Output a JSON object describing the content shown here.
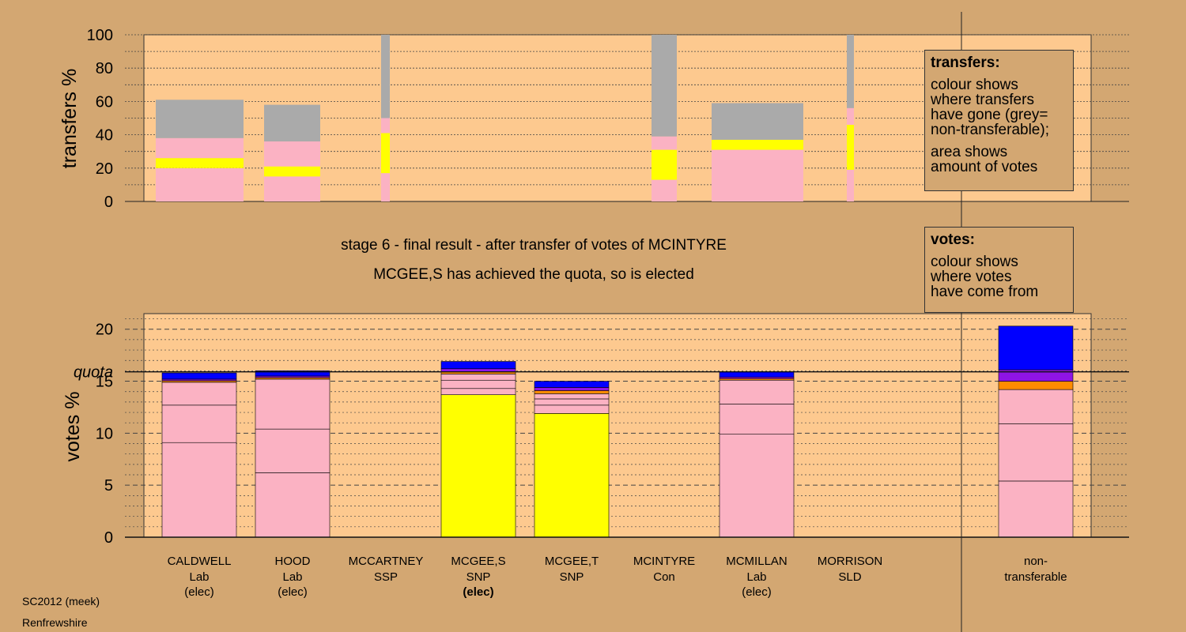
{
  "chart_data": [
    {
      "type": "bar",
      "ylabel": "transfers %",
      "ylim": [
        0,
        100
      ],
      "yticks": [
        "0",
        "20",
        "40",
        "60",
        "80",
        "100"
      ],
      "note": "stacked transfer bars; pink, yellow and grey segments (grey = non-transferable)",
      "bars": [
        {
          "candidate": "CALDWELL",
          "pink": 20,
          "yellow": 6,
          "pink2": 12,
          "grey": 23
        },
        {
          "candidate": "HOOD",
          "pink": 15,
          "yellow": 6,
          "pink2": 15,
          "grey": 22
        },
        {
          "candidate": "MCCARTNEY",
          "pink": 17,
          "yellow": 24,
          "pink2": 9,
          "grey": 50
        },
        {
          "candidate": "MCINTYRE",
          "pink": 13,
          "yellow": 18,
          "pink2": 8,
          "grey": 61
        },
        {
          "candidate": "MCMILLAN",
          "pink": 31,
          "yellow": 6,
          "pink2": 0,
          "grey": 22
        },
        {
          "candidate": "MORRISON",
          "pink": 19,
          "yellow": 27,
          "pink2": 10,
          "grey": 44
        }
      ]
    },
    {
      "type": "bar",
      "ylabel": "votes %",
      "ylim": [
        0,
        21.5
      ],
      "yticks": [
        "0",
        "5",
        "10",
        "15",
        "20"
      ],
      "quota": 15.9,
      "quota_label": "quota",
      "categories": [
        {
          "name": "CALDWELL",
          "party": "Lab",
          "status": "(elec)",
          "status_bold": false
        },
        {
          "name": "HOOD",
          "party": "Lab",
          "status": "(elec)",
          "status_bold": false
        },
        {
          "name": "MCCARTNEY",
          "party": "SSP",
          "status": "",
          "status_bold": false
        },
        {
          "name": "MCGEE,S",
          "party": "SNP",
          "status": "(elec)",
          "status_bold": true
        },
        {
          "name": "MCGEE,T",
          "party": "SNP",
          "status": "",
          "status_bold": false
        },
        {
          "name": "MCINTYRE",
          "party": "Con",
          "status": "",
          "status_bold": false
        },
        {
          "name": "MCMILLAN",
          "party": "Lab",
          "status": "(elec)",
          "status_bold": false
        },
        {
          "name": "MORRISON",
          "party": "SLD",
          "status": "",
          "status_bold": false
        }
      ],
      "bars": [
        [
          {
            "v": 9.1,
            "c": "pink"
          },
          {
            "v": 3.6,
            "c": "pink"
          },
          {
            "v": 2.2,
            "c": "pink"
          },
          {
            "v": 0.15,
            "c": "orange"
          },
          {
            "v": 0.15,
            "c": "purple"
          },
          {
            "v": 0.6,
            "c": "blue"
          }
        ],
        [
          {
            "v": 6.2,
            "c": "pink"
          },
          {
            "v": 4.2,
            "c": "pink"
          },
          {
            "v": 4.8,
            "c": "pink"
          },
          {
            "v": 0.15,
            "c": "orange"
          },
          {
            "v": 0.15,
            "c": "purple"
          },
          {
            "v": 0.5,
            "c": "blue"
          }
        ],
        [],
        [
          {
            "v": 13.7,
            "c": "yellow"
          },
          {
            "v": 0.6,
            "c": "pink"
          },
          {
            "v": 0.8,
            "c": "pink"
          },
          {
            "v": 0.6,
            "c": "pink"
          },
          {
            "v": 0.2,
            "c": "orange"
          },
          {
            "v": 0.3,
            "c": "purple"
          },
          {
            "v": 0.7,
            "c": "blue"
          }
        ],
        [
          {
            "v": 11.9,
            "c": "yellow"
          },
          {
            "v": 0.8,
            "c": "pink"
          },
          {
            "v": 0.6,
            "c": "pink"
          },
          {
            "v": 0.5,
            "c": "pink"
          },
          {
            "v": 0.3,
            "c": "orange"
          },
          {
            "v": 0.3,
            "c": "purple"
          },
          {
            "v": 0.6,
            "c": "blue"
          }
        ],
        [],
        [
          {
            "v": 9.9,
            "c": "pink"
          },
          {
            "v": 2.9,
            "c": "pink"
          },
          {
            "v": 2.3,
            "c": "pink"
          },
          {
            "v": 0.15,
            "c": "orange"
          },
          {
            "v": 0.15,
            "c": "purple"
          },
          {
            "v": 0.5,
            "c": "blue"
          }
        ],
        []
      ],
      "nontransferable": {
        "label_line1": "non-",
        "label_line2": "transferable",
        "segments": [
          {
            "v": 5.4,
            "c": "pink"
          },
          {
            "v": 5.5,
            "c": "pink"
          },
          {
            "v": 3.3,
            "c": "pink"
          },
          {
            "v": 0.8,
            "c": "orange"
          },
          {
            "v": 1.1,
            "c": "purple"
          },
          {
            "v": 4.2,
            "c": "blue"
          }
        ]
      }
    }
  ],
  "colors": {
    "plot_bg": "#fdc98f",
    "page_bg": "#d3a772",
    "pink": "#fbb2c3",
    "yellow": "#ffff00",
    "grey": "#aaaaaa",
    "blue": "#0000ff",
    "purple": "#8f14e6",
    "orange": "#ff8c00"
  },
  "legend_transfers": {
    "title": "transfers:",
    "line1": "colour shows",
    "line2": "where transfers",
    "line3": "have gone (grey=",
    "line4": "non-transferable);",
    "line5": "area shows",
    "line6": "amount of votes"
  },
  "legend_votes": {
    "title": "votes:",
    "line1": "colour shows",
    "line2": "where votes",
    "line3": "have come from"
  },
  "heading": {
    "line1": "stage 6 - final result - after transfer of votes of MCINTYRE",
    "line2": "MCGEE,S has achieved the quota, so is elected"
  },
  "footer": {
    "line1": "SC2012 (meek)",
    "line2": "Renfrewshire"
  }
}
